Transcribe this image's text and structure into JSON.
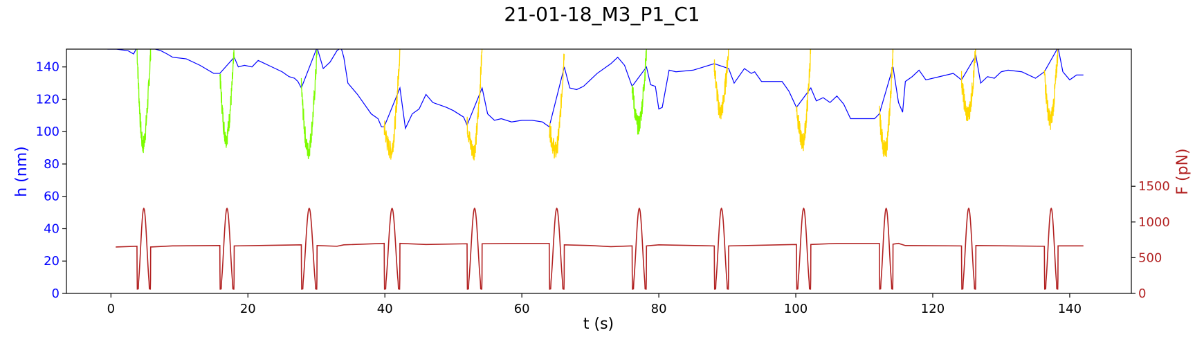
{
  "chart_data": {
    "type": "line",
    "title": "21-01-18_M3_P1_C1",
    "xlabel": "t (s)",
    "ylabel": "h (nm)",
    "y2label": "F (pN)",
    "xlim": [
      -6.5,
      149
    ],
    "ylim": [
      0,
      151
    ],
    "y2lim": [
      0,
      3420
    ],
    "x_ticks": [
      0,
      20,
      40,
      60,
      80,
      100,
      120,
      140
    ],
    "y_ticks": [
      0,
      20,
      40,
      60,
      80,
      100,
      120,
      140
    ],
    "y2_ticks": [
      0,
      500,
      1000,
      1500
    ],
    "colors": {
      "height": "#0000ff",
      "force": "#b22222",
      "green_segments": "#7cfc00",
      "gold_segments": "#ffd700",
      "axis_left": "#0000ff",
      "axis_right": "#b22222"
    },
    "grid": false,
    "legend": "none",
    "cycles": [
      {
        "start": 3.8,
        "center": 4.8,
        "end": 5.8,
        "color": "green"
      },
      {
        "start": 15.9,
        "center": 17.0,
        "end": 18.0,
        "color": "green"
      },
      {
        "start": 27.8,
        "center": 29.0,
        "end": 30.1,
        "color": "green"
      },
      {
        "start": 39.9,
        "center": 41.1,
        "end": 42.2,
        "color": "gold"
      },
      {
        "start": 52.0,
        "center": 53.1,
        "end": 54.2,
        "color": "gold"
      },
      {
        "start": 64.0,
        "center": 65.1,
        "end": 66.2,
        "color": "gold"
      },
      {
        "start": 76.1,
        "center": 77.2,
        "end": 78.2,
        "color": "green"
      },
      {
        "start": 88.1,
        "center": 89.1,
        "end": 90.2,
        "color": "gold"
      },
      {
        "start": 100.1,
        "center": 101.1,
        "end": 102.2,
        "color": "gold"
      },
      {
        "start": 112.2,
        "center": 113.2,
        "end": 114.2,
        "color": "gold"
      },
      {
        "start": 124.2,
        "center": 125.2,
        "end": 126.3,
        "color": "gold"
      },
      {
        "start": 136.3,
        "center": 137.2,
        "end": 138.3,
        "color": "gold"
      }
    ],
    "force_peak": 1190,
    "force_min": 60,
    "force_baseline": [
      [
        0.7,
        650
      ],
      [
        3.8,
        660
      ],
      [
        5.8,
        650
      ],
      [
        9,
        665
      ],
      [
        15.9,
        670
      ],
      [
        18.0,
        665
      ],
      [
        27.8,
        680
      ],
      [
        30.1,
        670
      ],
      [
        33,
        660
      ],
      [
        34,
        680
      ],
      [
        39.9,
        700
      ],
      [
        42.2,
        700
      ],
      [
        46,
        685
      ],
      [
        52.0,
        695
      ],
      [
        54.2,
        695
      ],
      [
        58,
        700
      ],
      [
        64.0,
        700
      ],
      [
        66.2,
        680
      ],
      [
        70,
        670
      ],
      [
        73,
        655
      ],
      [
        76.1,
        665
      ],
      [
        78.2,
        665
      ],
      [
        80,
        680
      ],
      [
        88.1,
        665
      ],
      [
        90.2,
        665
      ],
      [
        100.1,
        685
      ],
      [
        102.2,
        685
      ],
      [
        106,
        700
      ],
      [
        112.2,
        700
      ],
      [
        114.2,
        690
      ],
      [
        115,
        700
      ],
      [
        116,
        670
      ],
      [
        124.2,
        665
      ],
      [
        126.3,
        670
      ],
      [
        136.3,
        660
      ],
      [
        138.3,
        665
      ],
      [
        142,
        665
      ]
    ],
    "height_series": [
      [
        -0.5,
        151
      ],
      [
        0.8,
        151
      ],
      [
        2.5,
        150
      ],
      [
        3.3,
        148
      ],
      [
        3.8,
        152
      ],
      [
        5.8,
        152
      ],
      [
        6.5,
        151
      ],
      [
        7.3,
        150
      ],
      [
        8.2,
        148
      ],
      [
        9.0,
        146
      ],
      [
        11.0,
        145
      ],
      [
        13.0,
        141
      ],
      [
        15.0,
        136
      ],
      [
        15.9,
        136
      ],
      [
        18.0,
        146
      ],
      [
        18.6,
        140
      ],
      [
        19.5,
        141
      ],
      [
        20.6,
        140
      ],
      [
        21.5,
        144
      ],
      [
        23.0,
        141
      ],
      [
        25.0,
        137
      ],
      [
        26.0,
        134
      ],
      [
        26.8,
        133
      ],
      [
        27.3,
        131
      ],
      [
        27.8,
        127
      ],
      [
        30.1,
        152
      ],
      [
        31.0,
        139
      ],
      [
        32.0,
        143
      ],
      [
        33.0,
        150
      ],
      [
        33.6,
        152
      ],
      [
        34.0,
        146
      ],
      [
        34.6,
        130
      ],
      [
        36.0,
        123
      ],
      [
        38.0,
        111
      ],
      [
        39.0,
        108
      ],
      [
        39.5,
        103
      ],
      [
        39.9,
        103
      ],
      [
        42.2,
        127
      ],
      [
        43.0,
        102
      ],
      [
        44.0,
        111
      ],
      [
        45.0,
        114
      ],
      [
        46.0,
        123
      ],
      [
        47.0,
        118
      ],
      [
        49.0,
        115
      ],
      [
        50.0,
        113
      ],
      [
        51.5,
        109
      ],
      [
        52.0,
        104
      ],
      [
        54.2,
        127
      ],
      [
        55.0,
        111
      ],
      [
        56.0,
        107
      ],
      [
        57.0,
        108
      ],
      [
        58.5,
        106
      ],
      [
        60.0,
        107
      ],
      [
        61.5,
        107
      ],
      [
        63.0,
        106
      ],
      [
        64.0,
        103
      ],
      [
        66.2,
        140
      ],
      [
        67.0,
        127
      ],
      [
        68.0,
        126
      ],
      [
        69.0,
        128
      ],
      [
        70.0,
        132
      ],
      [
        71.0,
        136
      ],
      [
        73.0,
        142
      ],
      [
        74.0,
        146
      ],
      [
        75.0,
        141
      ],
      [
        76.1,
        128
      ],
      [
        78.2,
        140
      ],
      [
        78.8,
        129
      ],
      [
        79.5,
        128
      ],
      [
        80.0,
        114
      ],
      [
        80.5,
        115
      ],
      [
        81.5,
        138
      ],
      [
        82.5,
        137
      ],
      [
        85.0,
        138
      ],
      [
        88.1,
        142
      ],
      [
        90.2,
        139
      ],
      [
        91.0,
        130
      ],
      [
        92.5,
        139
      ],
      [
        93.5,
        136
      ],
      [
        94.0,
        137
      ],
      [
        95.0,
        131
      ],
      [
        98.0,
        131
      ],
      [
        99.0,
        125
      ],
      [
        100.1,
        115
      ],
      [
        102.2,
        127
      ],
      [
        103.0,
        119
      ],
      [
        104.0,
        121
      ],
      [
        105.0,
        118
      ],
      [
        106.0,
        122
      ],
      [
        107.0,
        117
      ],
      [
        108.0,
        108
      ],
      [
        110.0,
        108
      ],
      [
        111.5,
        108
      ],
      [
        112.2,
        111
      ],
      [
        114.2,
        140
      ],
      [
        115.0,
        118
      ],
      [
        115.6,
        112
      ],
      [
        116.0,
        131
      ],
      [
        117.0,
        134
      ],
      [
        118.0,
        138
      ],
      [
        119.0,
        132
      ],
      [
        121.0,
        134
      ],
      [
        123.0,
        136
      ],
      [
        124.2,
        132
      ],
      [
        126.3,
        147
      ],
      [
        127.0,
        130
      ],
      [
        128.0,
        134
      ],
      [
        129.0,
        133
      ],
      [
        130.0,
        137
      ],
      [
        131.0,
        138
      ],
      [
        133.0,
        137
      ],
      [
        135.0,
        133
      ],
      [
        136.3,
        137
      ],
      [
        138.3,
        152
      ],
      [
        139.0,
        137
      ],
      [
        140.0,
        132
      ],
      [
        141.0,
        135
      ],
      [
        142.0,
        135
      ]
    ]
  }
}
